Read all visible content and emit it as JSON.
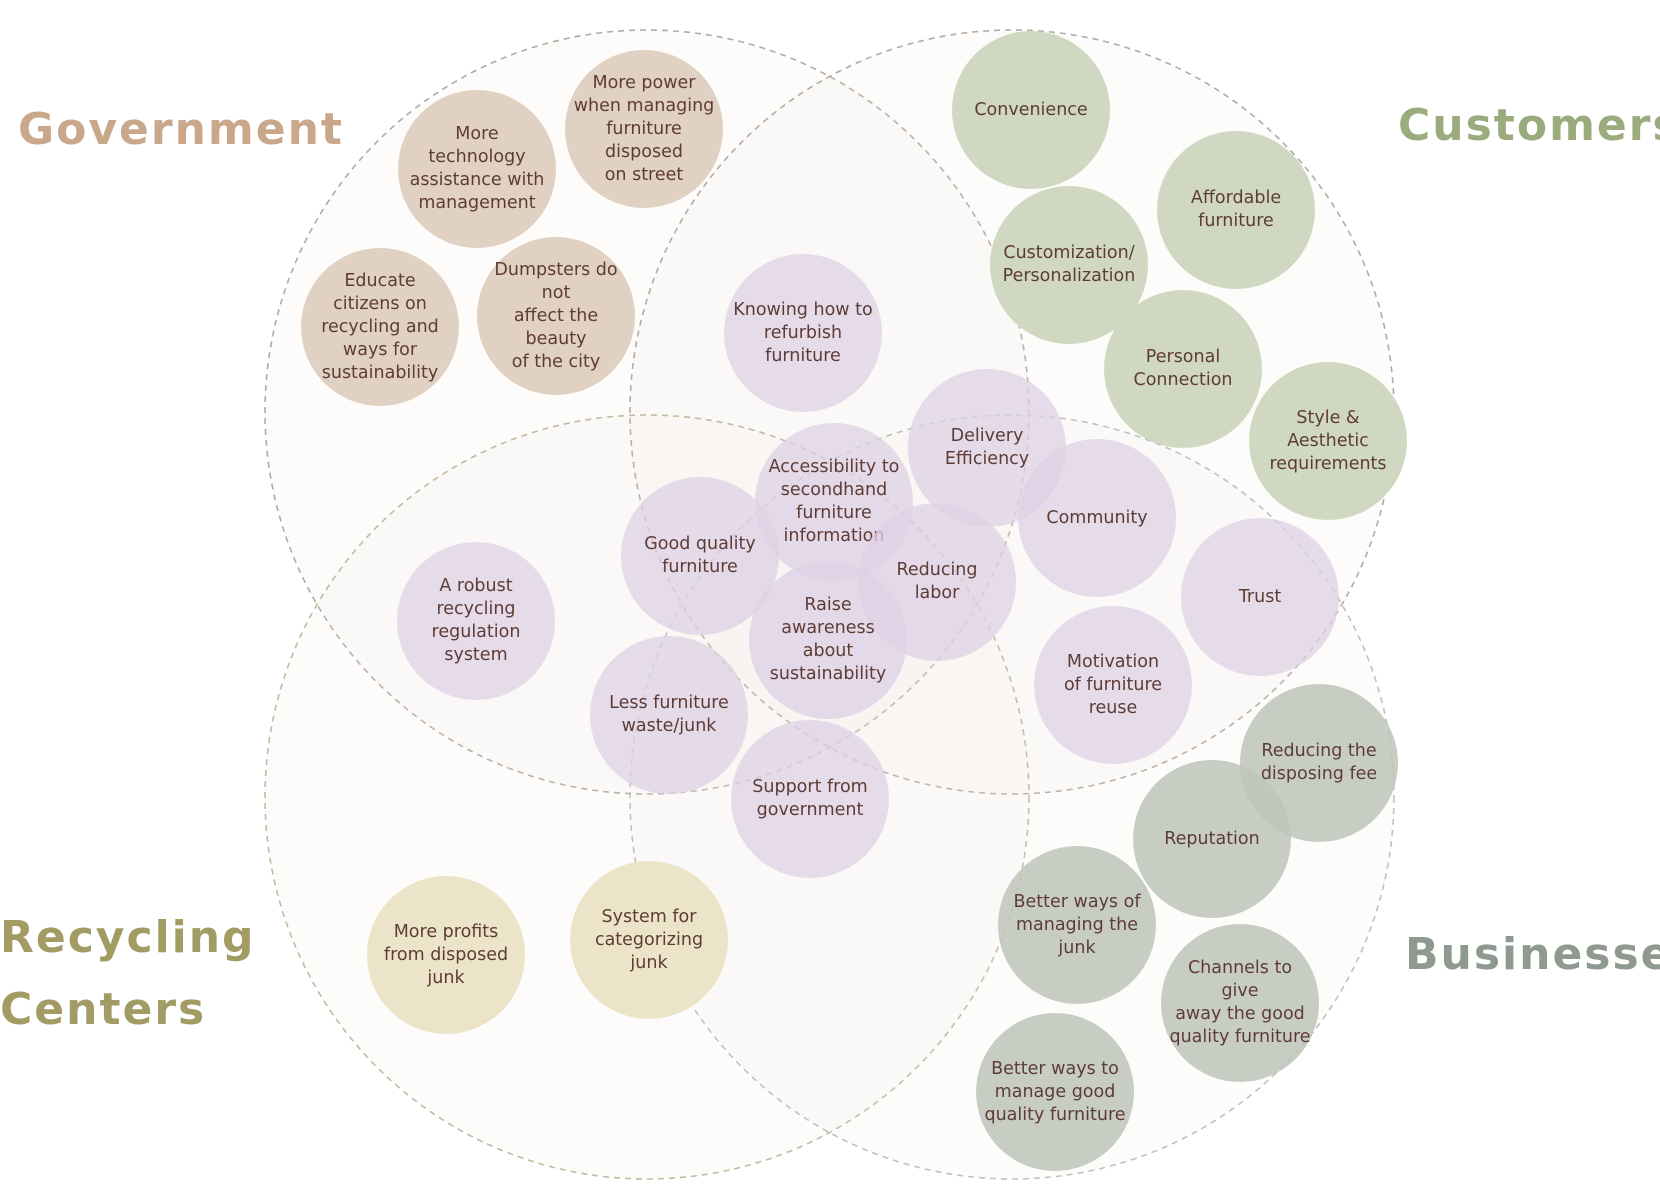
{
  "colors": {
    "government": "#c9a78b",
    "customers": "#9bab7d",
    "recycling": "#a29b63",
    "businesses": "#8f998f",
    "government_bubble": "#e1d1c3",
    "customers_bubble": "#d0d8c1",
    "recycling_bubble": "#ebe4c8",
    "businesses_bubble": "#c7ccc3",
    "shared_bubble": "#e6dcea",
    "bubble_text": "#5e3c36",
    "outline": "#a8a29c"
  },
  "groups": {
    "government": {
      "title": "Government"
    },
    "customers": {
      "title": "Customers"
    },
    "recycling": {
      "title_line1": "Recycling",
      "title_line2": "Centers"
    },
    "businesses": {
      "title": "Businesses"
    }
  },
  "bubbles": {
    "government": [
      {
        "label": "More power\nwhen managing\nfurniture disposed\non street"
      },
      {
        "label": "More technology\nassistance with\nmanagement"
      },
      {
        "label": "Educate\ncitizens on\nrecycling and\nways for\nsustainability"
      },
      {
        "label": "Dumpsters do not\naffect the beauty\nof the city"
      }
    ],
    "customers": [
      {
        "label": "Convenience"
      },
      {
        "label": "Affordable\nfurniture"
      },
      {
        "label": "Customization/\nPersonalization"
      },
      {
        "label": "Personal\nConnection"
      },
      {
        "label": "Style & Aesthetic\nrequirements"
      }
    ],
    "shared": [
      {
        "label": "Knowing how to\nrefurbish\nfurniture"
      },
      {
        "label": "Delivery\nEfficiency"
      },
      {
        "label": "Accessibility to\nsecondhand\nfurniture\ninformation"
      },
      {
        "label": "Good quality\nfurniture"
      },
      {
        "label": "Community"
      },
      {
        "label": "Reducing\nlabor"
      },
      {
        "label": "A robust\nrecycling\nregulation\nsystem"
      },
      {
        "label": "Trust"
      },
      {
        "label": "Raise awareness\nabout\nsustainability"
      },
      {
        "label": "Motivation\nof furniture\nreuse"
      },
      {
        "label": "Less furniture\nwaste/junk"
      },
      {
        "label": "Support from\ngovernment"
      }
    ],
    "recycling": [
      {
        "label": "More profits\nfrom disposed\njunk"
      },
      {
        "label": "System for\ncategorizing\njunk"
      }
    ],
    "businesses": [
      {
        "label": "Reducing the\ndisposing fee"
      },
      {
        "label": "Reputation"
      },
      {
        "label": "Better ways of\nmanaging the junk"
      },
      {
        "label": "Channels to give\naway the good\nquality furniture"
      },
      {
        "label": "Better ways to\nmanage good\nquality furniture"
      }
    ]
  }
}
